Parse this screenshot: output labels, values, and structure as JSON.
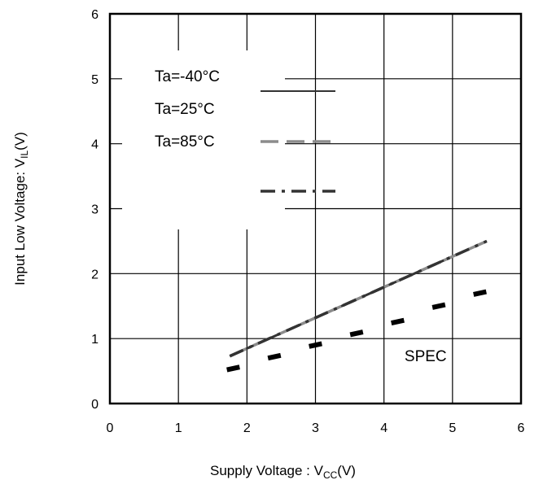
{
  "chart_data": {
    "type": "line",
    "title": "",
    "xlabel": {
      "main": "Supply Voltage : V",
      "sub": "CC",
      "unit": "(V)"
    },
    "ylabel": {
      "main": "Input Low Voltage: V",
      "sub": "IL",
      "unit": "(V)"
    },
    "xlim": [
      0,
      6
    ],
    "ylim": [
      0,
      6
    ],
    "xticks": [
      "0",
      "1",
      "2",
      "3",
      "4",
      "5",
      "6"
    ],
    "yticks": [
      "0",
      "1",
      "2",
      "3",
      "4",
      "5",
      "6"
    ],
    "grid": true,
    "legend_position": "top-left",
    "series": [
      {
        "name": "Ta=-40°C",
        "style": "solid",
        "color": "#333333",
        "x": [
          1.75,
          5.5
        ],
        "y": [
          0.73,
          2.5
        ]
      },
      {
        "name": "Ta=25°C",
        "style": "dashed",
        "color": "#8c8c8c",
        "x": [
          1.75,
          5.5
        ],
        "y": [
          0.73,
          2.5
        ]
      },
      {
        "name": "Ta=85°C",
        "style": "dashdot",
        "color": "#333333",
        "x": [
          1.75,
          5.5
        ],
        "y": [
          0.73,
          2.5
        ]
      },
      {
        "name": "SPEC",
        "style": "dotted",
        "color": "#000000",
        "x": [
          1.8,
          2.4,
          3.0,
          3.6,
          4.2,
          4.8,
          5.4
        ],
        "y": [
          0.54,
          0.72,
          0.9,
          1.08,
          1.26,
          1.5,
          1.7
        ]
      }
    ],
    "annotations": [
      {
        "text": "SPEC",
        "x": 4.3,
        "y": 0.65
      }
    ]
  }
}
